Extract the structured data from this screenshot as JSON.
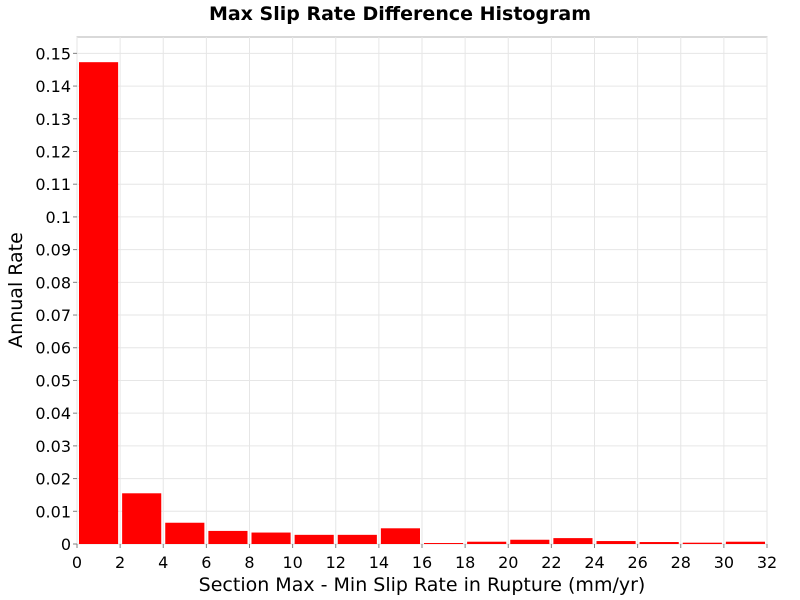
{
  "chart_data": {
    "type": "bar",
    "title": "Max Slip Rate Difference Histogram",
    "xlabel": "Section Max - Min Slip Rate in Rupture (mm/yr)",
    "ylabel": "Annual Rate",
    "xlim": [
      0,
      32
    ],
    "ylim": [
      0,
      0.155
    ],
    "bin_width": 2,
    "bar_color": "#ff0000",
    "grid": true,
    "x_ticks": [
      "0",
      "2",
      "4",
      "6",
      "8",
      "10",
      "12",
      "14",
      "16",
      "18",
      "20",
      "22",
      "24",
      "26",
      "28",
      "30",
      "32"
    ],
    "y_ticks": [
      "0",
      "0.01",
      "0.02",
      "0.03",
      "0.04",
      "0.05",
      "0.06",
      "0.07",
      "0.08",
      "0.09",
      "0.1",
      "0.11",
      "0.12",
      "0.13",
      "0.14",
      "0.15"
    ],
    "bins": [
      {
        "x_start": 0,
        "value": 0.1473
      },
      {
        "x_start": 2,
        "value": 0.0155
      },
      {
        "x_start": 4,
        "value": 0.0065
      },
      {
        "x_start": 6,
        "value": 0.004
      },
      {
        "x_start": 8,
        "value": 0.0035
      },
      {
        "x_start": 10,
        "value": 0.0028
      },
      {
        "x_start": 12,
        "value": 0.0028
      },
      {
        "x_start": 14,
        "value": 0.0048
      },
      {
        "x_start": 16,
        "value": 0.0003
      },
      {
        "x_start": 18,
        "value": 0.0007
      },
      {
        "x_start": 20,
        "value": 0.0013
      },
      {
        "x_start": 22,
        "value": 0.0018
      },
      {
        "x_start": 24,
        "value": 0.0009
      },
      {
        "x_start": 26,
        "value": 0.0006
      },
      {
        "x_start": 28,
        "value": 0.0004
      },
      {
        "x_start": 30,
        "value": 0.0007
      }
    ]
  }
}
